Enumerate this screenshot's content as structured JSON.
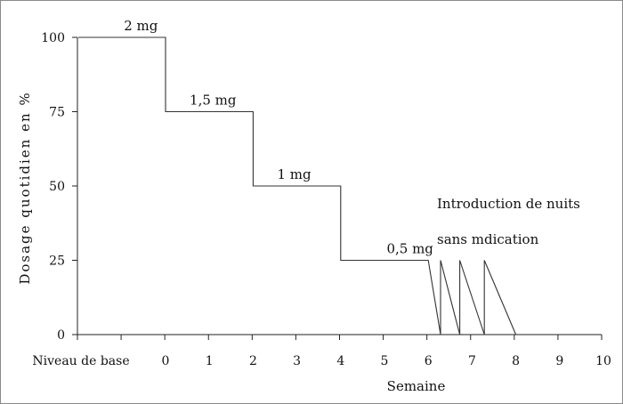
{
  "chart_data": {
    "type": "line",
    "title": "",
    "xlabel": "Semaine",
    "ylabel": "Dosage quotidien en %",
    "ylim": [
      0,
      100
    ],
    "yticks": [
      0,
      25,
      50,
      75,
      100
    ],
    "x_categories": [
      "Niveau de base",
      "0",
      "1",
      "2",
      "3",
      "4",
      "5",
      "6",
      "7",
      "8",
      "9",
      "10"
    ],
    "series": [
      {
        "name": "",
        "points": [
          {
            "x": "Niveau de base",
            "y": 100
          },
          {
            "x": 0,
            "y": 100
          },
          {
            "x": 0,
            "y": 75
          },
          {
            "x": 2,
            "y": 75
          },
          {
            "x": 2,
            "y": 50
          },
          {
            "x": 4,
            "y": 50
          },
          {
            "x": 4,
            "y": 25
          },
          {
            "x": 6,
            "y": 25
          },
          {
            "x": 6.28,
            "y": 0
          },
          {
            "x": 6.28,
            "y": 25
          },
          {
            "x": 6.72,
            "y": 0
          },
          {
            "x": 6.72,
            "y": 25
          },
          {
            "x": 7.28,
            "y": 0
          },
          {
            "x": 7.28,
            "y": 25
          },
          {
            "x": 8,
            "y": 0
          }
        ]
      }
    ],
    "step_labels": [
      {
        "text": "2 mg",
        "x": -0.95,
        "y": 100
      },
      {
        "text": "1,5 mg",
        "x": 0.55,
        "y": 75
      },
      {
        "text": "1 mg",
        "x": 2.55,
        "y": 50
      },
      {
        "text": "0,5 mg",
        "x": 5.05,
        "y": 25
      }
    ],
    "annotation_lines": [
      "Introduction de nuits",
      "sans mdication"
    ],
    "grid": false,
    "legend": "none"
  }
}
